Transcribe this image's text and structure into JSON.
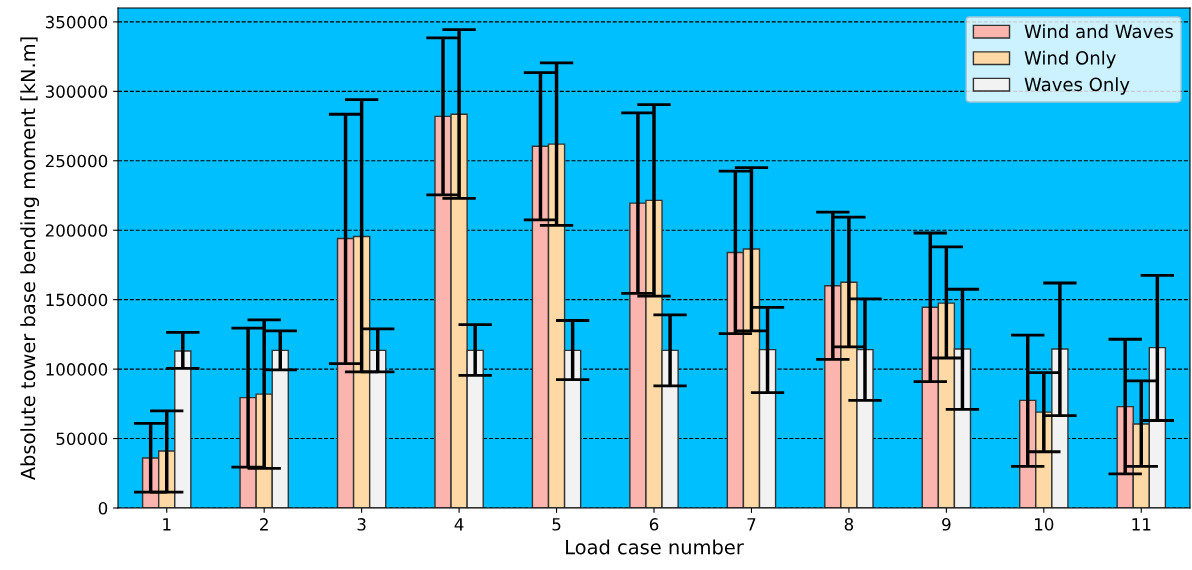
{
  "chart_data": {
    "type": "bar",
    "xlabel": "Load case number",
    "ylabel": "Absolute tower base bending moment [kN.m]",
    "categories": [
      "1",
      "2",
      "3",
      "4",
      "5",
      "6",
      "7",
      "8",
      "9",
      "10",
      "11"
    ],
    "series": [
      {
        "name": "Wind and Waves",
        "color": "#fbb4ae",
        "values": [
          36000,
          79500,
          194000,
          282000,
          260500,
          219500,
          184000,
          160000,
          144500,
          77500,
          73000
        ],
        "errors": [
          [
            11500,
            61000
          ],
          [
            29500,
            129500
          ],
          [
            104000,
            283500
          ],
          [
            225500,
            338500
          ],
          [
            207500,
            313500
          ],
          [
            154500,
            284500
          ],
          [
            125500,
            242500
          ],
          [
            107000,
            213000
          ],
          [
            91000,
            198000
          ],
          [
            30000,
            124500
          ],
          [
            24500,
            121500
          ]
        ]
      },
      {
        "name": "Wind Only",
        "color": "#fed9a6",
        "values": [
          41000,
          82000,
          195500,
          283500,
          262000,
          221500,
          186500,
          162500,
          147500,
          69000,
          60500
        ],
        "errors": [
          [
            11500,
            70000
          ],
          [
            28500,
            135500
          ],
          [
            98000,
            294000
          ],
          [
            223000,
            344500
          ],
          [
            203500,
            320500
          ],
          [
            152500,
            290500
          ],
          [
            127500,
            245000
          ],
          [
            116000,
            209500
          ],
          [
            108000,
            188000
          ],
          [
            40500,
            97500
          ],
          [
            30000,
            91500
          ]
        ]
      },
      {
        "name": "Waves Only",
        "color": "#f2f2f2",
        "values": [
          113000,
          113500,
          113500,
          113500,
          113500,
          113500,
          114000,
          114000,
          114500,
          114500,
          115500
        ],
        "errors": [
          [
            100500,
            126500
          ],
          [
            99500,
            127500
          ],
          [
            98000,
            129000
          ],
          [
            95500,
            132000
          ],
          [
            92500,
            135000
          ],
          [
            88000,
            139000
          ],
          [
            83000,
            144500
          ],
          [
            77500,
            150500
          ],
          [
            71000,
            157500
          ],
          [
            66500,
            162000
          ],
          [
            63000,
            167500
          ]
        ]
      }
    ],
    "ylim": [
      0,
      360000
    ],
    "yticks": [
      0,
      50000,
      100000,
      150000,
      200000,
      250000,
      300000,
      350000
    ],
    "grid": "y",
    "legend": "top right"
  }
}
